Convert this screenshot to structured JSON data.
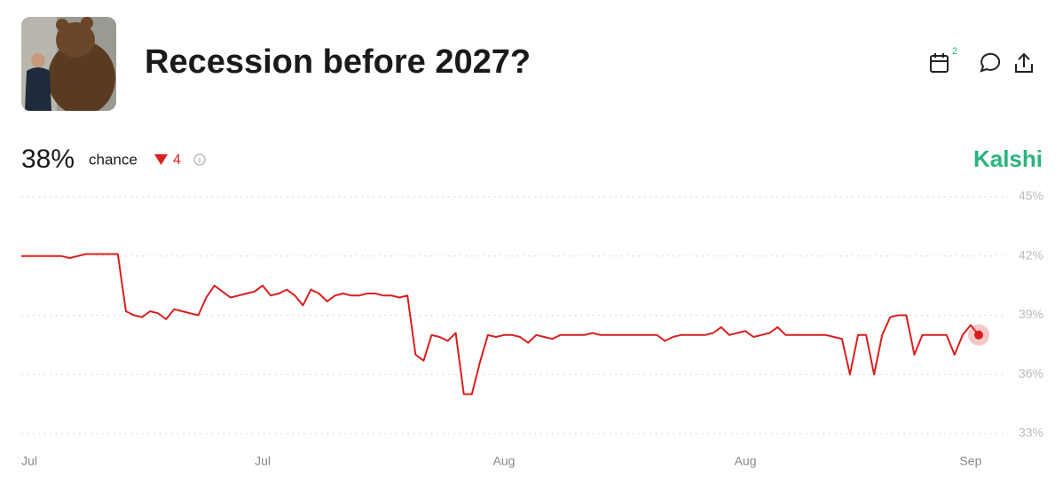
{
  "header": {
    "title": "Recession before 2027?",
    "calendar_badge": 2
  },
  "summary": {
    "chance_value": "38%",
    "chance_label": "chance",
    "change": "4",
    "brand": "Kalshi"
  },
  "chart_data": {
    "type": "line",
    "color": "#d91e1e",
    "grid": true,
    "categories": [
      null,
      "Jul",
      null,
      null,
      null,
      null,
      null,
      null,
      null,
      null,
      null,
      null,
      null,
      null,
      null,
      null,
      null,
      null,
      null,
      null,
      null,
      null,
      null,
      null,
      null,
      null,
      null,
      null,
      null,
      null,
      "Jul",
      null,
      null,
      null,
      null,
      null,
      null,
      null,
      null,
      null,
      null,
      null,
      null,
      null,
      null,
      null,
      null,
      null,
      null,
      null,
      null,
      null,
      null,
      null,
      null,
      null,
      null,
      null,
      null,
      null,
      "Aug",
      null,
      null,
      null,
      null,
      null,
      null,
      null,
      null,
      null,
      null,
      null,
      null,
      null,
      null,
      null,
      null,
      null,
      null,
      null,
      null,
      null,
      null,
      null,
      null,
      null,
      null,
      null,
      null,
      null,
      "Aug",
      null,
      null,
      null,
      null,
      null,
      null,
      null,
      null,
      null,
      null,
      null,
      null,
      null,
      null,
      null,
      null,
      null,
      null,
      null,
      null,
      null,
      null,
      null,
      null,
      null,
      null,
      null,
      "Sep",
      null
    ],
    "values": [
      42.0,
      42.0,
      42.0,
      42.0,
      42.0,
      42.0,
      41.9,
      42.0,
      42.1,
      42.1,
      42.1,
      42.1,
      42.1,
      39.2,
      39.0,
      38.9,
      39.2,
      39.1,
      38.8,
      39.3,
      39.2,
      39.1,
      39.0,
      39.9,
      40.5,
      40.2,
      39.9,
      40.0,
      40.1,
      40.2,
      40.5,
      40.0,
      40.1,
      40.3,
      40.0,
      39.5,
      40.3,
      40.1,
      39.7,
      40.0,
      40.1,
      40.0,
      40.0,
      40.1,
      40.1,
      40.0,
      40.0,
      39.9,
      40.0,
      37.0,
      36.7,
      38.0,
      37.9,
      37.7,
      38.1,
      35.0,
      35.0,
      36.6,
      38.0,
      37.9,
      38.0,
      38.0,
      37.9,
      37.6,
      38.0,
      37.9,
      37.8,
      38.0,
      38.0,
      38.0,
      38.0,
      38.1,
      38.0,
      38.0,
      38.0,
      38.0,
      38.0,
      38.0,
      38.0,
      38.0,
      37.7,
      37.9,
      38.0,
      38.0,
      38.0,
      38.0,
      38.1,
      38.4,
      38.0,
      38.1,
      38.2,
      37.9,
      38.0,
      38.1,
      38.4,
      38.0,
      38.0,
      38.0,
      38.0,
      38.0,
      38.0,
      37.9,
      37.8,
      36.0,
      38.0,
      38.0,
      36.0,
      38.0,
      38.9,
      39.0,
      39.0,
      37.0,
      38.0,
      38.0,
      38.0,
      38.0,
      37.0,
      38.0,
      38.5,
      38.0
    ],
    "ylim": [
      33,
      45
    ],
    "yticks": [
      {
        "value": 33,
        "label": "33%"
      },
      {
        "value": 36,
        "label": "36%"
      },
      {
        "value": 39,
        "label": "39%"
      },
      {
        "value": 42,
        "label": "42%"
      },
      {
        "value": 45,
        "label": "45%"
      }
    ]
  }
}
